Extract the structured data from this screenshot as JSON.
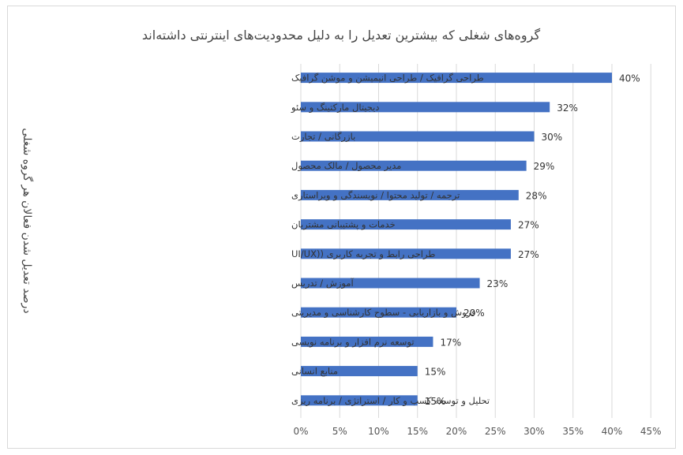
{
  "chart_data": {
    "type": "bar",
    "orientation": "horizontal",
    "title": "گروه‌های شغلی که بیشترین تعدیل را به دلیل محدودیت‌های اینترنتی داشته‌اند",
    "ylabel": "درصد تعدیل شدن فعالان هر گروه شغلی",
    "xlabel": "",
    "xlim": [
      0,
      45
    ],
    "x_ticks": [
      "0%",
      "5%",
      "10%",
      "15%",
      "20%",
      "25%",
      "30%",
      "35%",
      "40%",
      "45%"
    ],
    "grid": true,
    "legend": "none",
    "bar_color": "#4472c4",
    "categories": [
      "طراحی گرافیک / طراحی انیمیشن و موشن گرافیک",
      "دیجیتال مارکتینگ و سئو",
      "بازرگانی / تجارت",
      "مدیر محصول / مالک محصول",
      "ترجمه / تولید محتوا / نویسندگی و ویراستاری",
      "خدمات و پشتیبانی مشتریان",
      "طراحی رابط و تجربه کاربری ((UI/UX",
      "آموزش / تدریس",
      "فروش و بازاریابی - سطوح کارشناسی و مدیریتی",
      "توسعه نرم افزار و برنامه نویسی",
      "منابع انسانی",
      "تحلیل و توسعه کسب و کار / استراتژی / برنامه ریزی"
    ],
    "values": [
      40,
      32,
      30,
      29,
      28,
      27,
      27,
      23,
      20,
      17,
      15,
      15
    ],
    "data_labels": [
      "40%",
      "32%",
      "30%",
      "29%",
      "28%",
      "27%",
      "27%",
      "23%",
      "20%",
      "17%",
      "15%",
      "15%"
    ]
  }
}
